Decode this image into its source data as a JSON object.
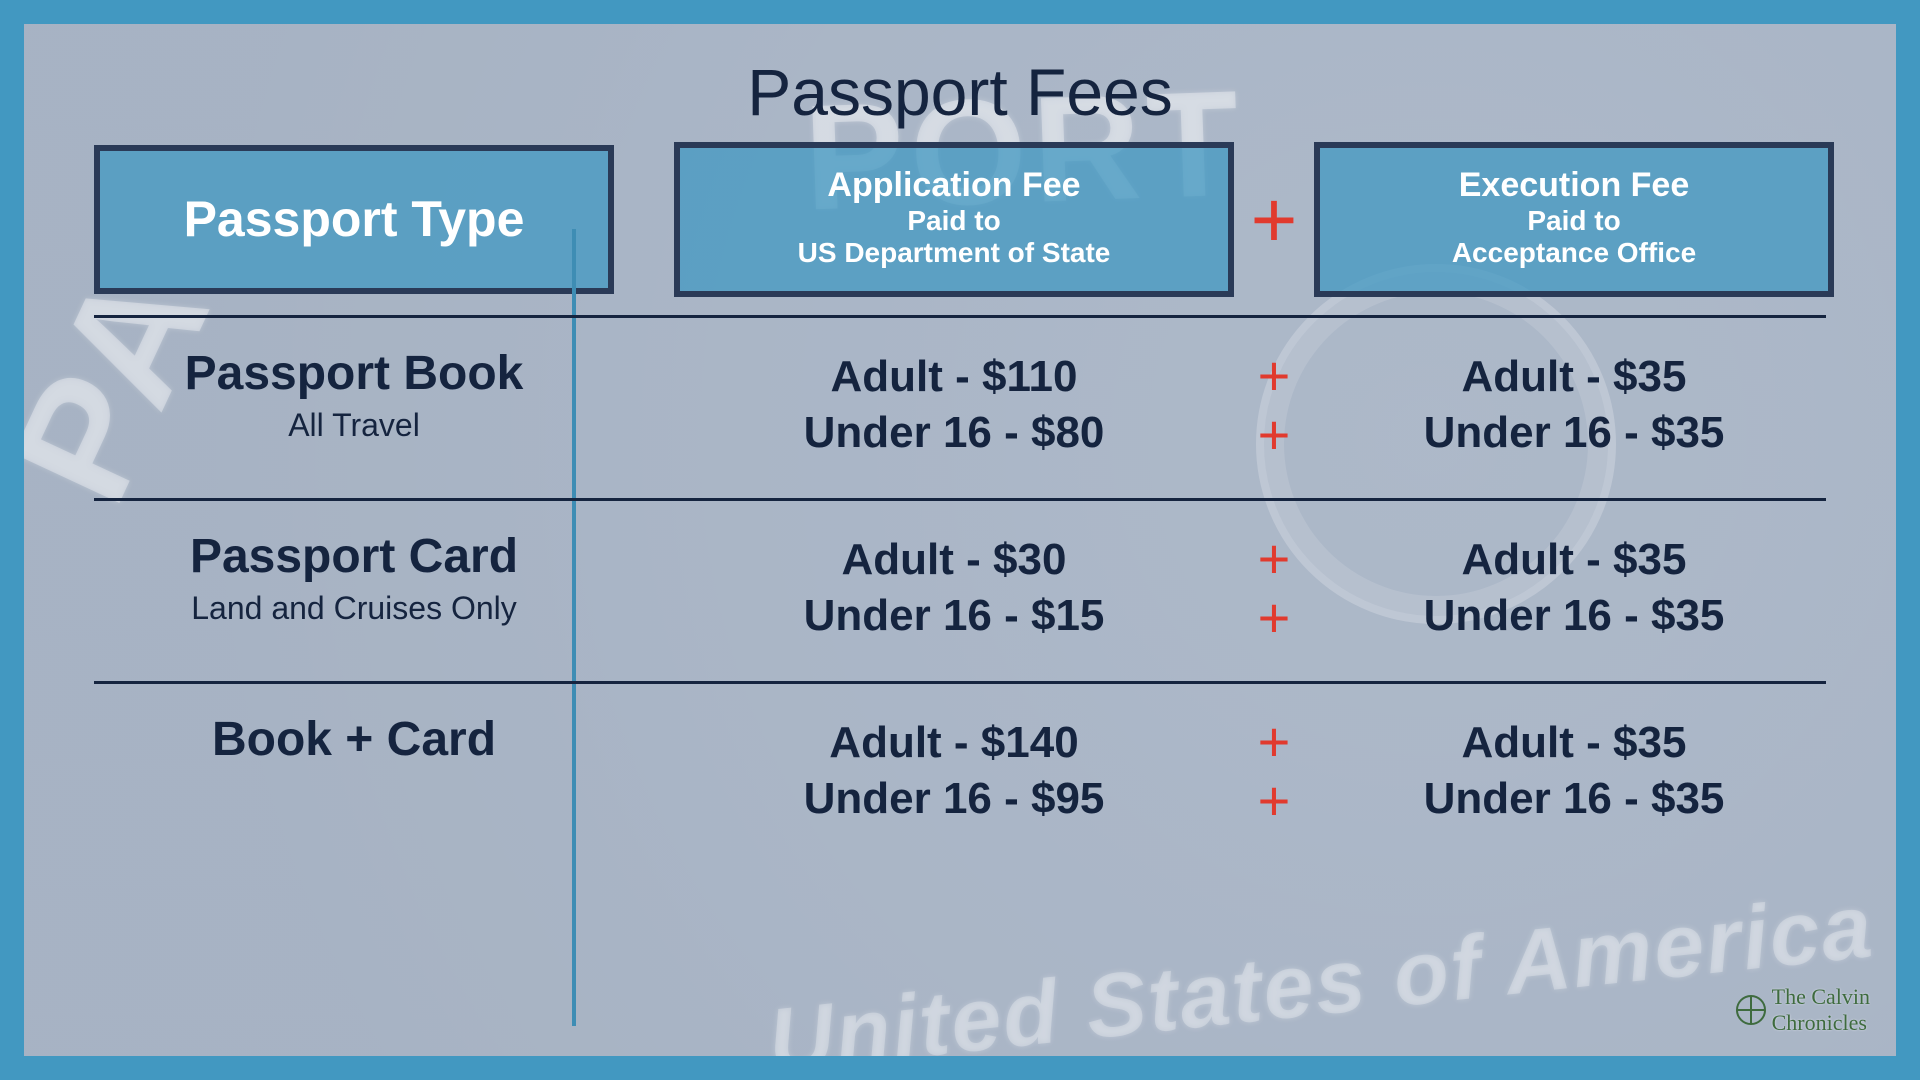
{
  "title": "Passport Fees",
  "plus_symbol": "+",
  "colors": {
    "frame": "#4298c1",
    "text_dark": "#15243f",
    "header_fill": "rgba(66,152,193,0.75)",
    "header_border": "#2a3a57",
    "header_text": "#ffffff",
    "plus": "#e13a2e",
    "divider_v": "#3e8db4",
    "divider_h": "#15243f"
  },
  "headers": {
    "type": {
      "big": "Passport Type"
    },
    "app": {
      "mid": "Application Fee",
      "sub1": "Paid to",
      "sub2": "US Department of State"
    },
    "exec": {
      "mid": "Execution Fee",
      "sub1": "Paid to",
      "sub2": "Acceptance Office"
    }
  },
  "rows": [
    {
      "name": "Passport Book",
      "desc": "All Travel",
      "app": {
        "adult": "Adult - $110",
        "child": "Under 16 - $80"
      },
      "exec": {
        "adult": "Adult - $35",
        "child": "Under 16 - $35"
      }
    },
    {
      "name": "Passport Card",
      "desc": "Land and Cruises Only",
      "app": {
        "adult": "Adult - $30",
        "child": "Under 16 - $15"
      },
      "exec": {
        "adult": "Adult - $35",
        "child": "Under 16 - $35"
      }
    },
    {
      "name": "Book + Card",
      "desc": "",
      "app": {
        "adult": "Adult - $140",
        "child": "Under 16 - $95"
      },
      "exec": {
        "adult": "Adult - $35",
        "child": "Under 16 - $35"
      }
    }
  ],
  "watermark": {
    "line1": "The Calvin",
    "line2": "Chronicles"
  },
  "bg_decor": {
    "t1": "PORT",
    "t2": "PA",
    "t3": "United States of America"
  }
}
